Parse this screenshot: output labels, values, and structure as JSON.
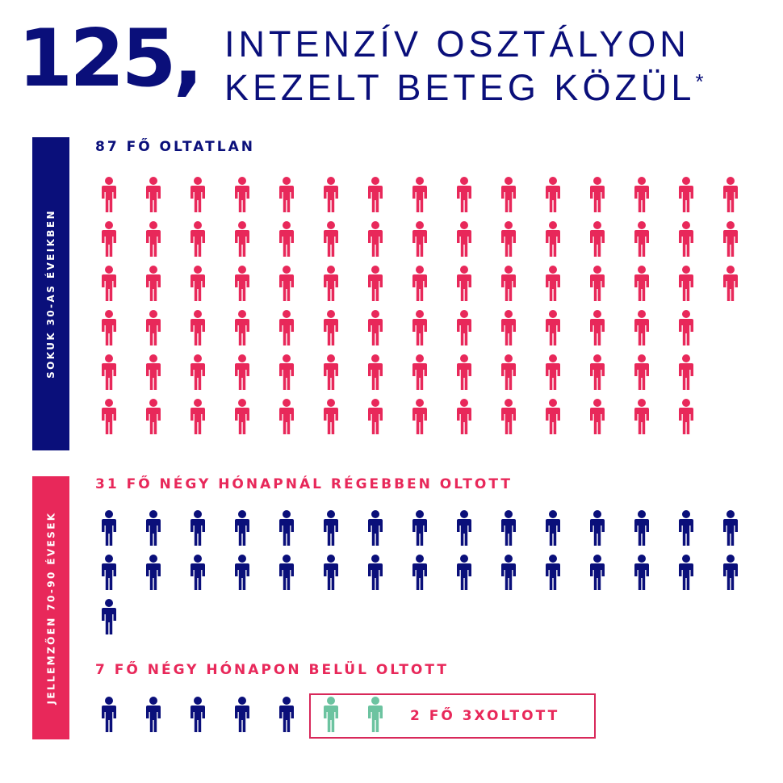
{
  "header": {
    "number": "125,",
    "line1": "INTENZÍV OSZTÁLYON",
    "line2": "KEZELT BETEG KÖZÜL",
    "asterisk": "*"
  },
  "sidebars": {
    "top": "SOKUK 30-AS ÉVEIKBEN",
    "bottom": "JELLEMZŐEN 70-90 ÉVESEK"
  },
  "colors": {
    "unvaccinated": "#e8285a",
    "vaccinated": "#0a0f7a",
    "boosted": "#6cc3a0"
  },
  "chart_data": {
    "type": "pictogram",
    "total": 125,
    "groups": [
      {
        "label": "87 FŐ OLTATLAN",
        "count": 87,
        "color": "#e8285a",
        "icon": "person-icon"
      },
      {
        "label": "31 FŐ NÉGY HÓNAPNÁL RÉGEBBEN OLTOTT",
        "count": 31,
        "color": "#0a0f7a",
        "icon": "person-icon"
      },
      {
        "label": "7 FŐ NÉGY HÓNAPON BELÜL OLTOTT",
        "count": 7,
        "color": "#0a0f7a",
        "icon": "person-icon",
        "subgroup": {
          "label": "2 FŐ 3XOLTOTT",
          "count": 2,
          "color": "#6cc3a0"
        }
      }
    ]
  }
}
